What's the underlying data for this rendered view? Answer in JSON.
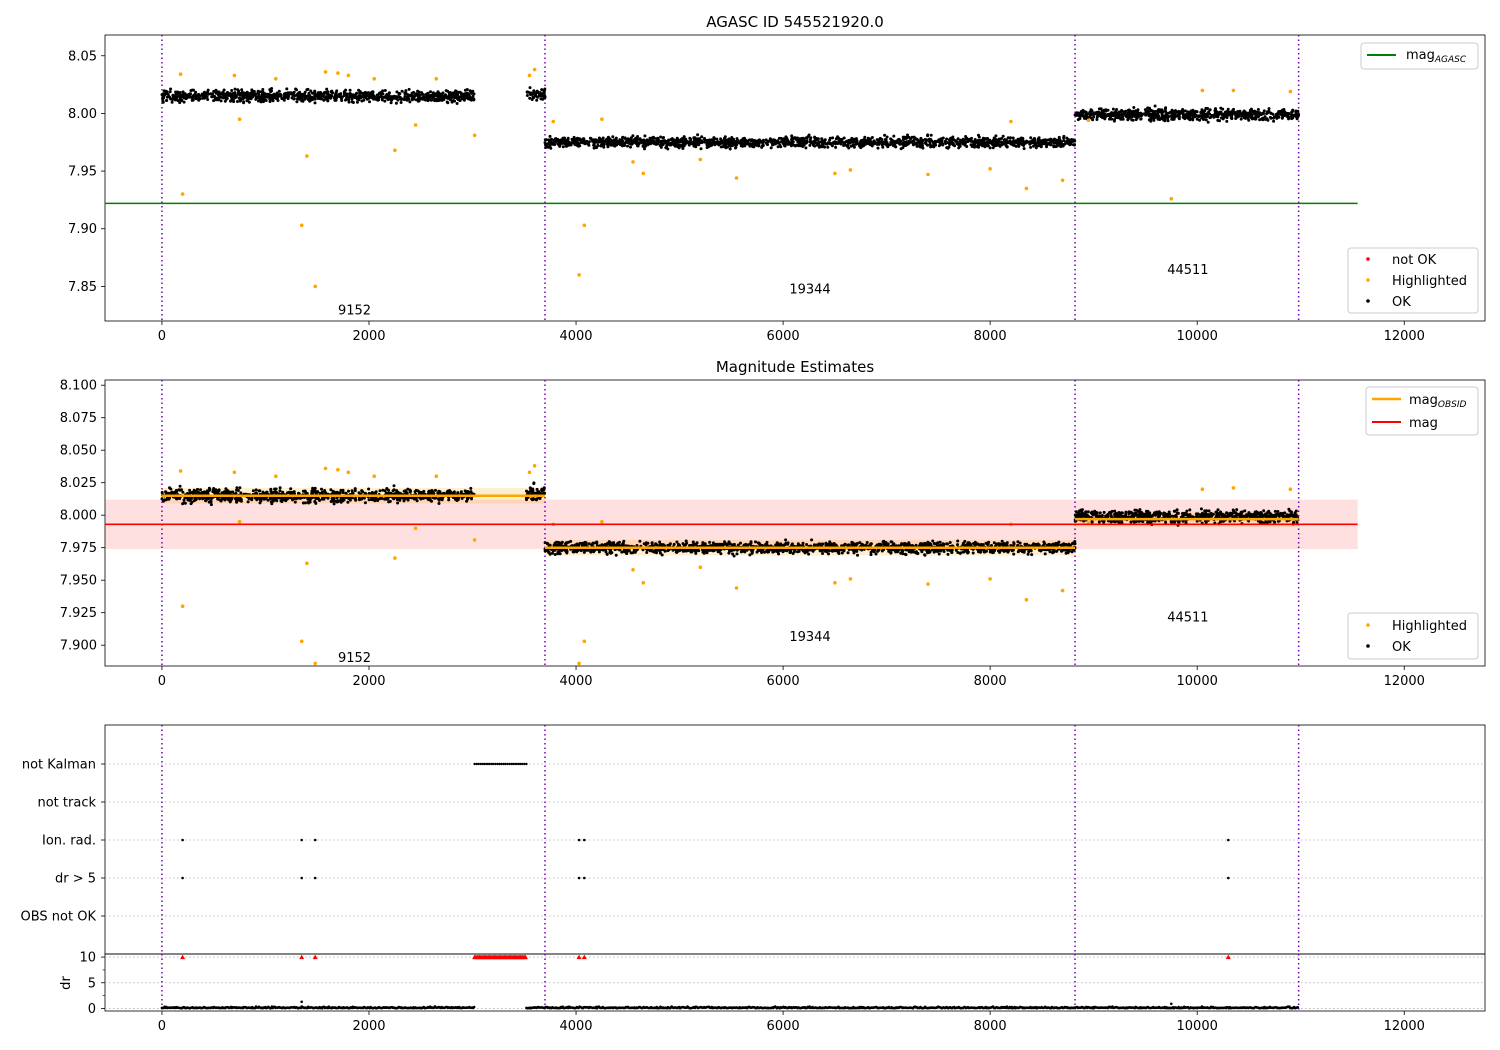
{
  "chart_data": [
    {
      "type": "scatter",
      "title": "AGASC ID 545521920.0",
      "xlim": [
        -550,
        12780
      ],
      "ylim": [
        7.82,
        8.068
      ],
      "xticks": [
        0,
        2000,
        4000,
        6000,
        8000,
        10000,
        12000
      ],
      "xtick_labels": [
        "0",
        "2000",
        "4000",
        "6000",
        "8000",
        "10000",
        "12000"
      ],
      "yticks": [
        7.85,
        7.9,
        7.95,
        8.0,
        8.05
      ],
      "ytick_labels": [
        "7.85",
        "7.90",
        "7.95",
        "8.00",
        "8.05"
      ],
      "vlines": [
        0,
        3700,
        8820,
        10980
      ],
      "segments": [
        {
          "x_start": 0,
          "x_end": 3020,
          "center": 8.015,
          "spread": 0.009
        },
        {
          "x_start": 3520,
          "x_end": 3700,
          "center": 8.017,
          "spread": 0.01
        },
        {
          "x_start": 3700,
          "x_end": 8820,
          "center": 7.975,
          "spread": 0.008
        },
        {
          "x_start": 8820,
          "x_end": 10980,
          "center": 7.999,
          "spread": 0.009
        }
      ],
      "highlighted": [
        [
          200,
          7.93
        ],
        [
          180,
          8.034
        ],
        [
          700,
          8.033
        ],
        [
          750,
          7.995
        ],
        [
          1100,
          8.03
        ],
        [
          1400,
          7.963
        ],
        [
          1350,
          7.903
        ],
        [
          1480,
          7.85
        ],
        [
          1580,
          8.036
        ],
        [
          1700,
          8.035
        ],
        [
          1800,
          8.033
        ],
        [
          2050,
          8.03
        ],
        [
          2250,
          7.968
        ],
        [
          2450,
          7.99
        ],
        [
          2650,
          8.03
        ],
        [
          3020,
          7.981
        ],
        [
          3550,
          8.033
        ],
        [
          3600,
          8.038
        ],
        [
          3780,
          7.993
        ],
        [
          4030,
          7.86
        ],
        [
          4080,
          7.903
        ],
        [
          4250,
          7.995
        ],
        [
          4550,
          7.958
        ],
        [
          4650,
          7.948
        ],
        [
          5200,
          7.96
        ],
        [
          5550,
          7.944
        ],
        [
          6500,
          7.948
        ],
        [
          6650,
          7.951
        ],
        [
          7400,
          7.947
        ],
        [
          8000,
          7.952
        ],
        [
          8350,
          7.935
        ],
        [
          8200,
          7.993
        ],
        [
          8700,
          7.942
        ],
        [
          8950,
          7.994
        ],
        [
          9750,
          7.926
        ],
        [
          10050,
          8.02
        ],
        [
          10350,
          8.02
        ],
        [
          10900,
          8.019
        ]
      ],
      "hline": {
        "name": "mag_AGASC",
        "value": 7.922,
        "x_start": -550,
        "x_end": 11550,
        "color": "#008000"
      },
      "annotations": [
        {
          "text": "9152",
          "x": 1860,
          "y": 7.83
        },
        {
          "text": "19344",
          "x": 6260,
          "y": 7.848
        },
        {
          "text": "44511",
          "x": 9910,
          "y": 7.865
        }
      ],
      "legend_upper": [
        {
          "label": "mag",
          "sub": "AGASC",
          "color": "#008000",
          "kind": "line"
        }
      ],
      "legend_lower": [
        {
          "label": "not OK",
          "color": "#ff0000",
          "kind": "dot"
        },
        {
          "label": "Highlighted",
          "color": "#ffa500",
          "kind": "dot"
        },
        {
          "label": "OK",
          "color": "#000000",
          "kind": "dot"
        }
      ]
    },
    {
      "type": "scatter",
      "title": "Magnitude Estimates",
      "xlim": [
        -550,
        12780
      ],
      "ylim": [
        7.884,
        8.104
      ],
      "xticks": [
        0,
        2000,
        4000,
        6000,
        8000,
        10000,
        12000
      ],
      "xtick_labels": [
        "0",
        "2000",
        "4000",
        "6000",
        "8000",
        "10000",
        "12000"
      ],
      "yticks": [
        7.9,
        7.925,
        7.95,
        7.975,
        8.0,
        8.025,
        8.05,
        8.075,
        8.1
      ],
      "ytick_labels": [
        "7.900",
        "7.925",
        "7.950",
        "7.975",
        "8.000",
        "8.025",
        "8.050",
        "8.075",
        "8.100"
      ],
      "vlines": [
        0,
        3700,
        8820,
        10980
      ],
      "segments": [
        {
          "x_start": 0,
          "x_end": 3020,
          "center": 8.015,
          "spread": 0.009
        },
        {
          "x_start": 3520,
          "x_end": 3700,
          "center": 8.017,
          "spread": 0.01
        },
        {
          "x_start": 3700,
          "x_end": 8820,
          "center": 7.975,
          "spread": 0.008
        },
        {
          "x_start": 8820,
          "x_end": 10980,
          "center": 7.999,
          "spread": 0.009
        }
      ],
      "highlighted": [
        [
          200,
          7.93
        ],
        [
          180,
          8.034
        ],
        [
          700,
          8.033
        ],
        [
          750,
          7.995
        ],
        [
          1100,
          8.03
        ],
        [
          1400,
          7.963
        ],
        [
          1350,
          7.903
        ],
        [
          1480,
          7.886
        ],
        [
          1580,
          8.036
        ],
        [
          1700,
          8.035
        ],
        [
          1800,
          8.033
        ],
        [
          2050,
          8.03
        ],
        [
          2250,
          7.967
        ],
        [
          2450,
          7.99
        ],
        [
          2650,
          8.03
        ],
        [
          3020,
          7.981
        ],
        [
          3550,
          8.033
        ],
        [
          3600,
          8.038
        ],
        [
          3780,
          7.993
        ],
        [
          4030,
          7.886
        ],
        [
          4080,
          7.903
        ],
        [
          4250,
          7.995
        ],
        [
          4550,
          7.958
        ],
        [
          4650,
          7.948
        ],
        [
          5200,
          7.96
        ],
        [
          5550,
          7.944
        ],
        [
          6500,
          7.948
        ],
        [
          6650,
          7.951
        ],
        [
          7400,
          7.947
        ],
        [
          8000,
          7.951
        ],
        [
          8350,
          7.935
        ],
        [
          8200,
          7.993
        ],
        [
          8700,
          7.942
        ],
        [
          8950,
          7.994
        ],
        [
          10050,
          8.02
        ],
        [
          10350,
          8.021
        ],
        [
          10900,
          8.02
        ]
      ],
      "obsid_lines": [
        {
          "x_start": 0,
          "x_end": 3700,
          "value": 8.015,
          "band": 0.006
        },
        {
          "x_start": 3700,
          "x_end": 8820,
          "value": 7.975,
          "band": 0.006
        },
        {
          "x_start": 8820,
          "x_end": 10980,
          "value": 7.997,
          "band": 0.006
        }
      ],
      "mag_line": {
        "value": 7.993,
        "low": 7.974,
        "high": 8.012,
        "x_start": -550,
        "x_end": 11550
      },
      "annotations": [
        {
          "text": "9152",
          "x": 1860,
          "y": 7.891
        },
        {
          "text": "19344",
          "x": 6260,
          "y": 7.907
        },
        {
          "text": "44511",
          "x": 9910,
          "y": 7.922
        }
      ],
      "legend_upper": [
        {
          "label": "mag",
          "sub": "OBSID",
          "color": "#ffa500",
          "kind": "line"
        },
        {
          "label": "mag",
          "sub": "",
          "color": "#ff0000",
          "kind": "line"
        }
      ],
      "legend_lower": [
        {
          "label": "Highlighted",
          "color": "#ffa500",
          "kind": "dot"
        },
        {
          "label": "OK",
          "color": "#000000",
          "kind": "dot"
        }
      ]
    },
    {
      "type": "scatter",
      "title": "",
      "xlim": [
        -550,
        12780
      ],
      "vlines": [
        0,
        3700,
        8820,
        10980
      ],
      "flag_rows": [
        "not Kalman",
        "not track",
        "Ion. rad.",
        "dr > 5",
        "OBS not OK"
      ],
      "flags": {
        "not Kalman": {
          "ranges": [
            [
              3020,
              3520
            ]
          ],
          "points": []
        },
        "not track": {
          "ranges": [],
          "points": []
        },
        "Ion. rad.": {
          "ranges": [],
          "points": [
            200,
            1350,
            1480,
            4030,
            4080,
            10300
          ]
        },
        "dr > 5": {
          "ranges": [],
          "points": [
            200,
            1350,
            1480,
            4030,
            4080,
            10300
          ]
        },
        "OBS not OK": {
          "ranges": [],
          "points": []
        }
      }
    },
    {
      "type": "scatter",
      "title": "",
      "ylabel": "dr",
      "xlim": [
        -550,
        12780
      ],
      "ylim": [
        -0.5,
        10.6
      ],
      "yticks": [
        0,
        5,
        10
      ],
      "ytick_labels": [
        "0",
        "5",
        "10"
      ],
      "xticks": [
        0,
        2000,
        4000,
        6000,
        8000,
        10000,
        12000
      ],
      "xtick_labels": [
        "0",
        "2000",
        "4000",
        "6000",
        "8000",
        "10000",
        "12000"
      ],
      "vlines": [
        0,
        3700,
        8820,
        10980
      ],
      "dr_segments": [
        {
          "x_start": 0,
          "x_end": 3020
        },
        {
          "x_start": 3520,
          "x_end": 10980
        }
      ],
      "dr_outliers": [
        [
          1350,
          1.3
        ],
        [
          9750,
          0.9
        ]
      ],
      "clipped_points": [
        200,
        1350,
        1480,
        4030,
        4080,
        10300
      ],
      "clipped_range": [
        3020,
        3520
      ],
      "clip_value": 10
    }
  ]
}
